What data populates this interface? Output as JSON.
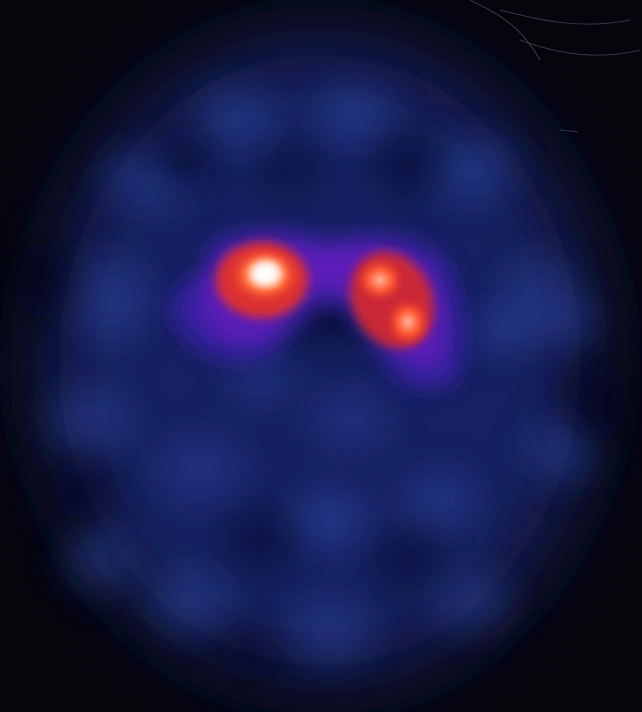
{
  "image": {
    "background_color": "#05050c",
    "palette": {
      "outer_glow": "#1a2a6e",
      "tissue_blue": "#2a3f8f",
      "speckle_blue": "#3a5bb0",
      "uptake_purple": "#3a1fa8",
      "uptake_violet": "#6a1fc0",
      "hotspot_red": "#e8362a",
      "hotspot_orange": "#ff7a3c",
      "hotspot_core": "#fff4ea"
    }
  }
}
